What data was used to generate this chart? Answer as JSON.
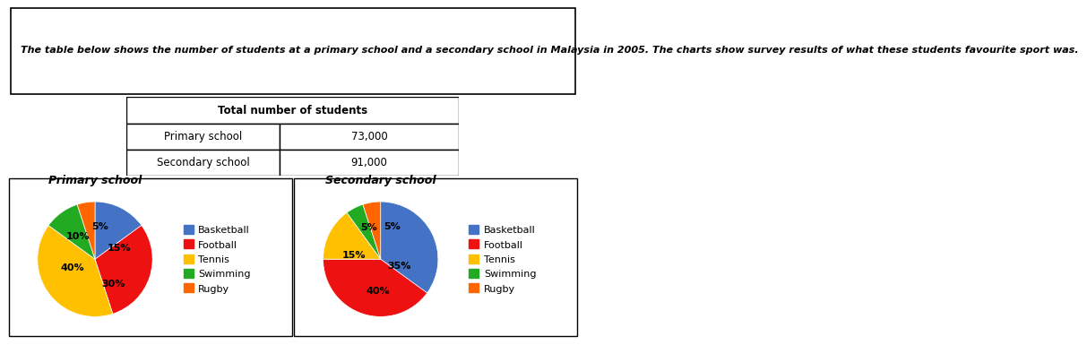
{
  "description": "The table below shows the number of students at a primary school and a secondary school in Malaysia in 2005. The charts show survey results of what these students favourite sport was.",
  "table_header": "Total number of students",
  "table_rows": [
    [
      "Primary school",
      "73,000"
    ],
    [
      "Secondary school",
      "91,000"
    ]
  ],
  "primary_title": "Primary school",
  "secondary_title": "Secondary school",
  "sports": [
    "Basketball",
    "Football",
    "Tennis",
    "Swimming",
    "Rugby"
  ],
  "colors": [
    "#4472C4",
    "#EE1111",
    "#FFC000",
    "#22AA22",
    "#FF6600"
  ],
  "primary_values": [
    15,
    30,
    40,
    10,
    5
  ],
  "secondary_values": [
    35,
    40,
    15,
    5,
    5
  ],
  "primary_labels": [
    "15%",
    "30%",
    "40%",
    "10%",
    "5%"
  ],
  "secondary_labels": [
    "35%",
    "40%",
    "15%",
    "5%",
    "5%"
  ],
  "primary_startangle": 90,
  "secondary_startangle": 90,
  "bg_color": "#ffffff",
  "label_fontsize": 8,
  "title_fontsize": 9,
  "legend_fontsize": 8,
  "desc_fontsize": 8
}
